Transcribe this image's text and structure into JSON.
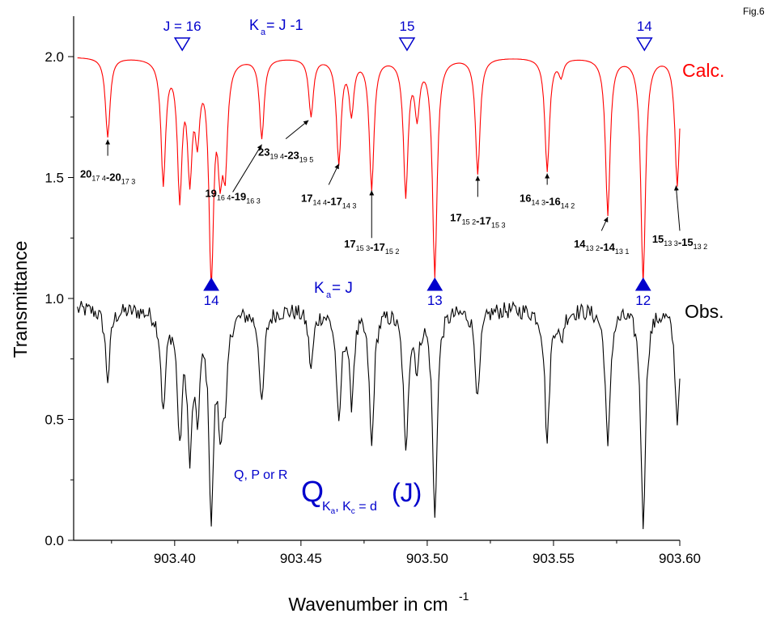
{
  "fig_label": "Fig.6",
  "chart_data": {
    "type": "line",
    "xlabel": "Wavenumber in cm",
    "xlabel_sup": "-1",
    "ylabel": "Transmittance",
    "xlim": [
      903.36,
      903.6
    ],
    "ylim": [
      0.0,
      2.0
    ],
    "x_ticks": [
      "903.40",
      "903.45",
      "903.50",
      "903.55",
      "903.60"
    ],
    "x_tick_values": [
      903.4,
      903.45,
      903.5,
      903.55,
      903.6
    ],
    "y_ticks": [
      "0.0",
      "0.5",
      "1.0",
      "1.5",
      "2.0"
    ],
    "y_tick_values": [
      0.0,
      0.5,
      1.0,
      1.5,
      2.0
    ],
    "series": [
      {
        "name": "Calc.",
        "color": "#ff0000",
        "baseline": 2.0,
        "lines": [
          [
            903.3735,
            1.67
          ],
          [
            903.3955,
            1.49
          ],
          [
            903.402,
            1.45
          ],
          [
            903.406,
            1.55
          ],
          [
            903.409,
            1.72
          ],
          [
            903.4145,
            1.11
          ],
          [
            903.418,
            1.62
          ],
          [
            903.42,
            1.6
          ],
          [
            903.4345,
            1.67
          ],
          [
            903.454,
            1.76
          ],
          [
            903.465,
            1.57
          ],
          [
            903.47,
            1.78
          ],
          [
            903.478,
            1.46
          ],
          [
            903.4915,
            1.44
          ],
          [
            903.496,
            1.78
          ],
          [
            903.503,
            1.1
          ],
          [
            903.52,
            1.52
          ],
          [
            903.5475,
            1.53
          ],
          [
            903.553,
            1.93
          ],
          [
            903.5715,
            1.35
          ],
          [
            903.5855,
            1.07
          ],
          [
            903.599,
            1.47
          ]
        ]
      },
      {
        "name": "Obs.",
        "color": "#000000",
        "baseline": 0.96,
        "lines": [
          [
            903.3735,
            0.67
          ],
          [
            903.3955,
            0.55
          ],
          [
            903.402,
            0.45
          ],
          [
            903.406,
            0.41
          ],
          [
            903.409,
            0.58
          ],
          [
            903.4145,
            0.14
          ],
          [
            903.418,
            0.57
          ],
          [
            903.42,
            0.62
          ],
          [
            903.4345,
            0.56
          ],
          [
            903.454,
            0.72
          ],
          [
            903.465,
            0.49
          ],
          [
            903.47,
            0.6
          ],
          [
            903.478,
            0.4
          ],
          [
            903.4915,
            0.38
          ],
          [
            903.496,
            0.75
          ],
          [
            903.503,
            0.1
          ],
          [
            903.52,
            0.58
          ],
          [
            903.5475,
            0.41
          ],
          [
            903.553,
            0.84
          ],
          [
            903.5715,
            0.38
          ],
          [
            903.5855,
            0.07
          ],
          [
            903.599,
            0.5
          ]
        ]
      }
    ],
    "upper_markers": {
      "title_prefix": "K",
      "title_sub": "a",
      "title_suffix": " = J -1",
      "color": "#0000cc",
      "items": [
        {
          "x": 903.403,
          "label": "J = 16"
        },
        {
          "x": 903.492,
          "label": "15"
        },
        {
          "x": 903.586,
          "label": "14"
        }
      ]
    },
    "lower_markers": {
      "title_prefix": "K",
      "title_sub": "a",
      "title_suffix": " = J",
      "color": "#0000cc",
      "items": [
        {
          "x": 903.4145,
          "label": "14"
        },
        {
          "x": 903.503,
          "label": "13"
        },
        {
          "x": 903.5855,
          "label": "12"
        }
      ]
    },
    "annotations": [
      {
        "x": 903.3735,
        "y": 1.67,
        "tx": 903.3735,
        "ty": 1.59,
        "text": "20_{17 4}-20_{17 3}",
        "anchor": "middle",
        "label_y": 1.5
      },
      {
        "x": 903.4345,
        "y": 1.65,
        "tx": 903.423,
        "ty": 1.44,
        "text": "19_{16 4}-19_{16 3}",
        "anchor": "middle",
        "label_y": 1.42
      },
      {
        "x": 903.453,
        "y": 1.75,
        "tx": 903.444,
        "ty": 1.66,
        "text": "23_{19 4}-23_{19 5}",
        "anchor": "middle",
        "label_y": 1.59
      },
      {
        "x": 903.465,
        "y": 1.57,
        "tx": 903.461,
        "ty": 1.47,
        "text": "17_{14 4}-17_{14 3}",
        "anchor": "middle",
        "label_y": 1.4
      },
      {
        "x": 903.478,
        "y": 1.46,
        "tx": 903.478,
        "ty": 1.25,
        "text": "17_{15 3}-17_{15 2}",
        "anchor": "middle",
        "label_y": 1.21
      },
      {
        "x": 903.52,
        "y": 1.52,
        "tx": 903.52,
        "ty": 1.42,
        "text": "17_{15 2}-17_{15 3}",
        "anchor": "middle",
        "label_y": 1.32
      },
      {
        "x": 903.5475,
        "y": 1.53,
        "tx": 903.5475,
        "ty": 1.47,
        "text": "16_{14 3}-16_{14 2}",
        "anchor": "middle",
        "label_y": 1.4
      },
      {
        "x": 903.5715,
        "y": 1.35,
        "tx": 903.569,
        "ty": 1.28,
        "text": "14_{13 2}-14_{13 1}",
        "anchor": "middle",
        "label_y": 1.21
      },
      {
        "x": 903.5985,
        "y": 1.48,
        "tx": 903.6,
        "ty": 1.28,
        "text": "15_{13 3}-15_{13 2}",
        "anchor": "middle",
        "label_y": 1.23
      }
    ],
    "legend": {
      "calc": "Calc.",
      "obs": "Obs."
    },
    "notation": {
      "prefix": "Q, P or R",
      "main": "Q",
      "sub": "K",
      "sub_a": "a",
      "sub_mid": ", K",
      "sub_c": "c",
      "sub_end": " = d",
      "tail": "(J)"
    }
  }
}
